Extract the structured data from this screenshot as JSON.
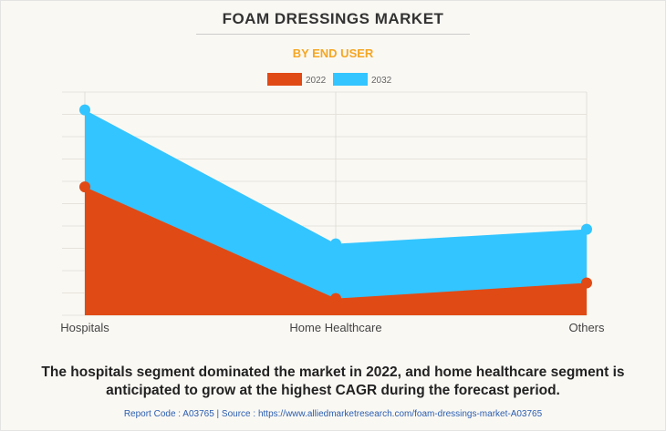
{
  "header": {
    "title": "FOAM DRESSINGS MARKET",
    "subtitle": "BY END USER"
  },
  "chart_data": {
    "type": "area",
    "categories": [
      "Hospitals",
      "Home Healthcare",
      "Others"
    ],
    "series": [
      {
        "name": "2022",
        "color": "#e04a15",
        "values": [
          5.75,
          0.75,
          1.45
        ]
      },
      {
        "name": "2032",
        "color": "#33c5ff",
        "values": [
          9.2,
          3.2,
          3.85
        ]
      }
    ],
    "ylim": [
      0,
      10
    ],
    "grid": true,
    "legend": "top"
  },
  "caption": "The hospitals segment dominated the market in 2022, and home healthcare segment is anticipated to grow at the highest CAGR during the forecast period.",
  "source": "Report Code : A03765  |  Source : https://www.alliedmarketresearch.com/foam-dressings-market-A03765"
}
